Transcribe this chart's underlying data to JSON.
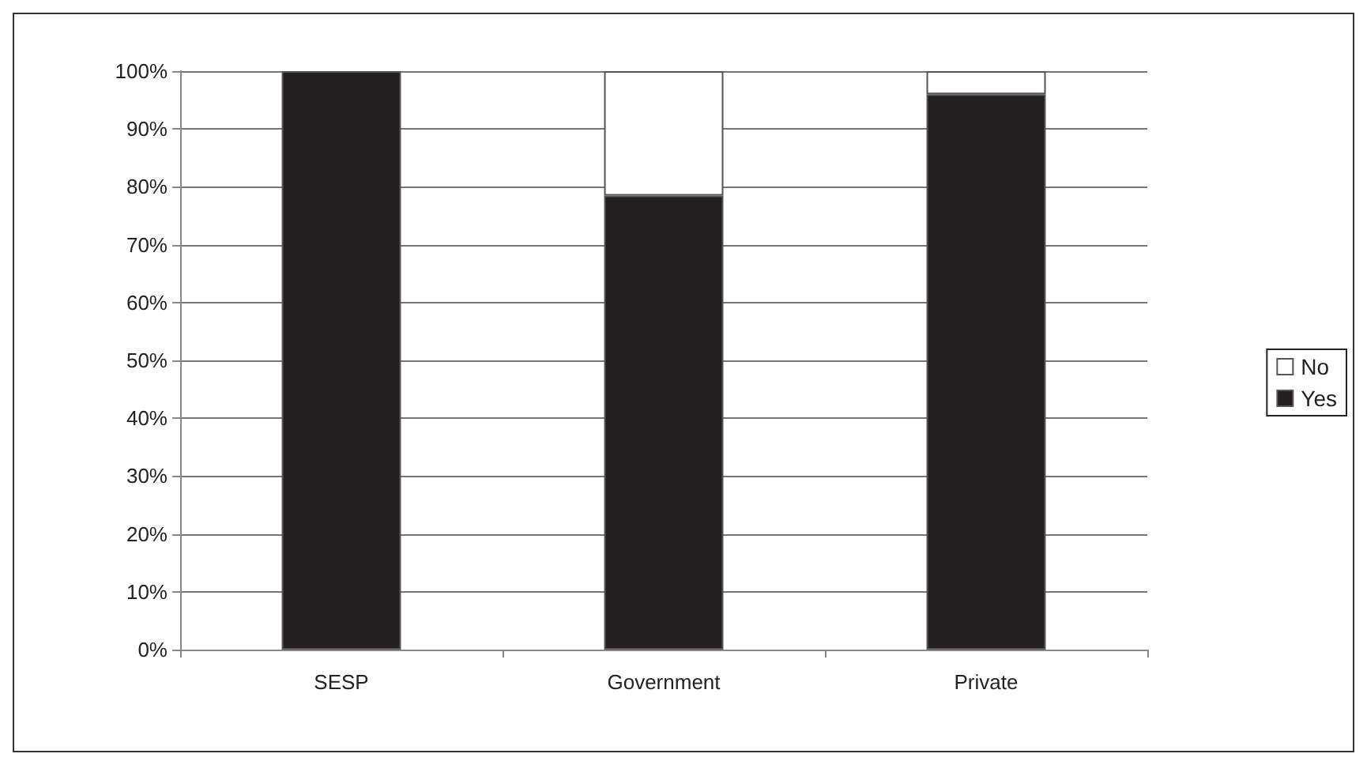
{
  "chart_data": {
    "type": "bar",
    "stacked": true,
    "categories": [
      "SESP",
      "Government",
      "Private"
    ],
    "series": [
      {
        "name": "Yes",
        "color": "#231f20",
        "values": [
          100,
          78.5,
          96
        ]
      },
      {
        "name": "No",
        "color": "#ffffff",
        "values": [
          0,
          21.5,
          4
        ]
      }
    ],
    "ylim": [
      0,
      100
    ],
    "yticks": [
      {
        "value": 0,
        "label": "0%"
      },
      {
        "value": 10,
        "label": "10%"
      },
      {
        "value": 20,
        "label": "20%"
      },
      {
        "value": 30,
        "label": "30%"
      },
      {
        "value": 40,
        "label": "40%"
      },
      {
        "value": 50,
        "label": "50%"
      },
      {
        "value": 60,
        "label": "60%"
      },
      {
        "value": 70,
        "label": "70%"
      },
      {
        "value": 80,
        "label": "80%"
      },
      {
        "value": 90,
        "label": "90%"
      },
      {
        "value": 100,
        "label": "100%"
      }
    ],
    "grid": "y",
    "legend": "right"
  }
}
